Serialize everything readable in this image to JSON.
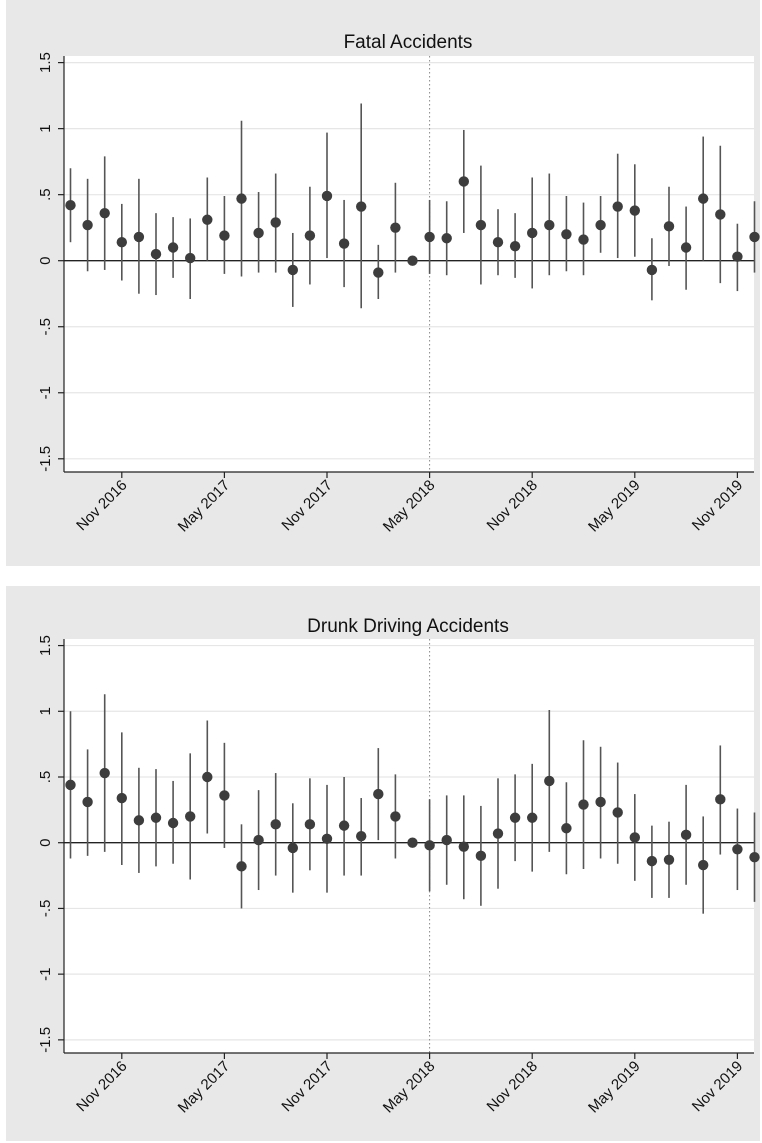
{
  "chart_data": [
    {
      "type": "scatter",
      "title": "Fatal Accidents",
      "xlabel": "",
      "ylabel": "",
      "ylim": [
        -1.6,
        1.55
      ],
      "y_ticks": [
        1.5,
        1,
        0.5,
        0,
        -0.5,
        -1,
        -1.5
      ],
      "y_tick_labels": [
        "1.5",
        "1",
        ".5",
        "0",
        "-.5",
        "-1",
        "-1.5"
      ],
      "x_ticks": [
        {
          "label": "Nov 2016",
          "index": 3
        },
        {
          "label": "May 2017",
          "index": 9
        },
        {
          "label": "Nov 2017",
          "index": 15
        },
        {
          "label": "May 2018",
          "index": 21
        },
        {
          "label": "Nov 2018",
          "index": 27
        },
        {
          "label": "May 2019",
          "index": 33
        },
        {
          "label": "Nov 2019",
          "index": 39
        }
      ],
      "reference_line_index": 21,
      "grid": true,
      "points": [
        {
          "y": 0.42,
          "lo": 0.14,
          "hi": 0.7
        },
        {
          "y": 0.27,
          "lo": -0.08,
          "hi": 0.62
        },
        {
          "y": 0.36,
          "lo": -0.07,
          "hi": 0.79
        },
        {
          "y": 0.14,
          "lo": -0.15,
          "hi": 0.43
        },
        {
          "y": 0.18,
          "lo": -0.25,
          "hi": 0.62
        },
        {
          "y": 0.05,
          "lo": -0.26,
          "hi": 0.36
        },
        {
          "y": 0.1,
          "lo": -0.13,
          "hi": 0.33
        },
        {
          "y": 0.02,
          "lo": -0.29,
          "hi": 0.32
        },
        {
          "y": 0.31,
          "lo": 0.0,
          "hi": 0.63
        },
        {
          "y": 0.19,
          "lo": -0.1,
          "hi": 0.49
        },
        {
          "y": 0.47,
          "lo": -0.12,
          "hi": 1.06
        },
        {
          "y": 0.21,
          "lo": -0.09,
          "hi": 0.52
        },
        {
          "y": 0.29,
          "lo": -0.09,
          "hi": 0.66
        },
        {
          "y": -0.07,
          "lo": -0.35,
          "hi": 0.21
        },
        {
          "y": 0.19,
          "lo": -0.18,
          "hi": 0.56
        },
        {
          "y": 0.49,
          "lo": 0.02,
          "hi": 0.97
        },
        {
          "y": 0.13,
          "lo": -0.2,
          "hi": 0.46
        },
        {
          "y": 0.41,
          "lo": -0.36,
          "hi": 1.19
        },
        {
          "y": -0.09,
          "lo": -0.29,
          "hi": 0.12
        },
        {
          "y": 0.25,
          "lo": -0.09,
          "hi": 0.59
        },
        {
          "y": 0.0,
          "lo": 0.0,
          "hi": 0.0
        },
        {
          "y": 0.18,
          "lo": -0.1,
          "hi": 0.46
        },
        {
          "y": 0.17,
          "lo": -0.11,
          "hi": 0.45
        },
        {
          "y": 0.6,
          "lo": 0.21,
          "hi": 0.99
        },
        {
          "y": 0.27,
          "lo": -0.18,
          "hi": 0.72
        },
        {
          "y": 0.14,
          "lo": -0.11,
          "hi": 0.39
        },
        {
          "y": 0.11,
          "lo": -0.13,
          "hi": 0.36
        },
        {
          "y": 0.21,
          "lo": -0.21,
          "hi": 0.63
        },
        {
          "y": 0.27,
          "lo": -0.11,
          "hi": 0.66
        },
        {
          "y": 0.2,
          "lo": -0.08,
          "hi": 0.49
        },
        {
          "y": 0.16,
          "lo": -0.11,
          "hi": 0.44
        },
        {
          "y": 0.27,
          "lo": 0.06,
          "hi": 0.49
        },
        {
          "y": 0.41,
          "lo": 0.02,
          "hi": 0.81
        },
        {
          "y": 0.38,
          "lo": 0.03,
          "hi": 0.73
        },
        {
          "y": -0.07,
          "lo": -0.3,
          "hi": 0.17
        },
        {
          "y": 0.26,
          "lo": -0.04,
          "hi": 0.56
        },
        {
          "y": 0.1,
          "lo": -0.22,
          "hi": 0.41
        },
        {
          "y": 0.47,
          "lo": 0.0,
          "hi": 0.94
        },
        {
          "y": 0.35,
          "lo": -0.17,
          "hi": 0.87
        },
        {
          "y": 0.03,
          "lo": -0.23,
          "hi": 0.28
        },
        {
          "y": 0.18,
          "lo": -0.09,
          "hi": 0.45
        }
      ]
    },
    {
      "type": "scatter",
      "title": "Drunk Driving Accidents",
      "xlabel": "",
      "ylabel": "",
      "ylim": [
        -1.6,
        1.55
      ],
      "y_ticks": [
        1.5,
        1,
        0.5,
        0,
        -0.5,
        -1,
        -1.5
      ],
      "y_tick_labels": [
        "1.5",
        "1",
        ".5",
        "0",
        "-.5",
        "-1",
        "-1.5"
      ],
      "x_ticks": [
        {
          "label": "Nov 2016",
          "index": 3
        },
        {
          "label": "May 2017",
          "index": 9
        },
        {
          "label": "Nov 2017",
          "index": 15
        },
        {
          "label": "May 2018",
          "index": 21
        },
        {
          "label": "Nov 2018",
          "index": 27
        },
        {
          "label": "May 2019",
          "index": 33
        },
        {
          "label": "Nov 2019",
          "index": 39
        }
      ],
      "reference_line_index": 21,
      "grid": true,
      "points": [
        {
          "y": 0.44,
          "lo": -0.12,
          "hi": 1.0
        },
        {
          "y": 0.31,
          "lo": -0.1,
          "hi": 0.71
        },
        {
          "y": 0.53,
          "lo": -0.07,
          "hi": 1.13
        },
        {
          "y": 0.34,
          "lo": -0.17,
          "hi": 0.84
        },
        {
          "y": 0.17,
          "lo": -0.23,
          "hi": 0.57
        },
        {
          "y": 0.19,
          "lo": -0.18,
          "hi": 0.56
        },
        {
          "y": 0.15,
          "lo": -0.16,
          "hi": 0.47
        },
        {
          "y": 0.2,
          "lo": -0.28,
          "hi": 0.68
        },
        {
          "y": 0.5,
          "lo": 0.07,
          "hi": 0.93
        },
        {
          "y": 0.36,
          "lo": -0.04,
          "hi": 0.76
        },
        {
          "y": -0.18,
          "lo": -0.5,
          "hi": 0.14
        },
        {
          "y": 0.02,
          "lo": -0.36,
          "hi": 0.4
        },
        {
          "y": 0.14,
          "lo": -0.25,
          "hi": 0.53
        },
        {
          "y": -0.04,
          "lo": -0.38,
          "hi": 0.3
        },
        {
          "y": 0.14,
          "lo": -0.21,
          "hi": 0.49
        },
        {
          "y": 0.03,
          "lo": -0.38,
          "hi": 0.44
        },
        {
          "y": 0.13,
          "lo": -0.25,
          "hi": 0.5
        },
        {
          "y": 0.05,
          "lo": -0.25,
          "hi": 0.34
        },
        {
          "y": 0.37,
          "lo": 0.02,
          "hi": 0.72
        },
        {
          "y": 0.2,
          "lo": -0.12,
          "hi": 0.52
        },
        {
          "y": 0.0,
          "lo": 0.0,
          "hi": 0.0
        },
        {
          "y": -0.02,
          "lo": -0.37,
          "hi": 0.33
        },
        {
          "y": 0.02,
          "lo": -0.32,
          "hi": 0.36
        },
        {
          "y": -0.03,
          "lo": -0.43,
          "hi": 0.36
        },
        {
          "y": -0.1,
          "lo": -0.48,
          "hi": 0.28
        },
        {
          "y": 0.07,
          "lo": -0.35,
          "hi": 0.49
        },
        {
          "y": 0.19,
          "lo": -0.14,
          "hi": 0.52
        },
        {
          "y": 0.19,
          "lo": -0.22,
          "hi": 0.6
        },
        {
          "y": 0.47,
          "lo": -0.07,
          "hi": 1.01
        },
        {
          "y": 0.11,
          "lo": -0.24,
          "hi": 0.46
        },
        {
          "y": 0.29,
          "lo": -0.2,
          "hi": 0.78
        },
        {
          "y": 0.31,
          "lo": -0.12,
          "hi": 0.73
        },
        {
          "y": 0.23,
          "lo": -0.16,
          "hi": 0.61
        },
        {
          "y": 0.04,
          "lo": -0.29,
          "hi": 0.37
        },
        {
          "y": -0.14,
          "lo": -0.42,
          "hi": 0.13
        },
        {
          "y": -0.13,
          "lo": -0.42,
          "hi": 0.16
        },
        {
          "y": 0.06,
          "lo": -0.32,
          "hi": 0.44
        },
        {
          "y": -0.17,
          "lo": -0.54,
          "hi": 0.2
        },
        {
          "y": 0.33,
          "lo": -0.09,
          "hi": 0.74
        },
        {
          "y": -0.05,
          "lo": -0.36,
          "hi": 0.26
        },
        {
          "y": -0.11,
          "lo": -0.45,
          "hi": 0.23
        }
      ]
    }
  ]
}
